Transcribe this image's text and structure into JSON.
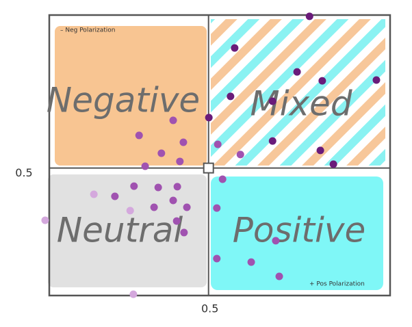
{
  "chart_data": {
    "type": "scatter",
    "quadrant_labels": [
      "Negative",
      "Mixed",
      "Neutral",
      "Positive"
    ],
    "annotations": [
      "– Neg Polarization",
      "+ Pos Polarization"
    ],
    "xlim": [
      0,
      1.07
    ],
    "ylim": [
      0,
      1.1
    ],
    "xticks": [
      0.5
    ],
    "yticks": [
      0.5
    ],
    "series": [
      {
        "color": "#6a1b7a",
        "x": [
          0.817,
          0.582,
          0.778,
          0.857,
          1.027,
          0.701,
          0.569,
          0.501,
          0.701,
          0.851,
          0.892
        ],
        "values": [
          1.095,
          0.971,
          0.877,
          0.842,
          0.845,
          0.762,
          0.781,
          0.698,
          0.606,
          0.569,
          0.515
        ]
      },
      {
        "color": "#a052b0",
        "x": [
          0.282,
          0.389,
          0.421,
          0.352,
          0.41,
          0.301,
          0.529,
          0.6,
          0.544,
          0.266,
          0.342,
          0.402,
          0.206,
          0.389,
          0.432,
          0.329,
          0.4,
          0.423,
          0.526,
          0.711,
          0.526,
          0.634,
          0.722
        ],
        "values": [
          0.628,
          0.687,
          0.601,
          0.558,
          0.526,
          0.507,
          0.593,
          0.553,
          0.456,
          0.429,
          0.424,
          0.427,
          0.389,
          0.373,
          0.346,
          0.346,
          0.292,
          0.247,
          0.343,
          0.215,
          0.145,
          0.131,
          0.075
        ]
      },
      {
        "color": "#d4a8dd",
        "x": [
          0.14,
          -0.013,
          0.254,
          0.264
        ],
        "values": [
          0.397,
          0.295,
          0.333,
          0.005
        ]
      }
    ]
  }
}
